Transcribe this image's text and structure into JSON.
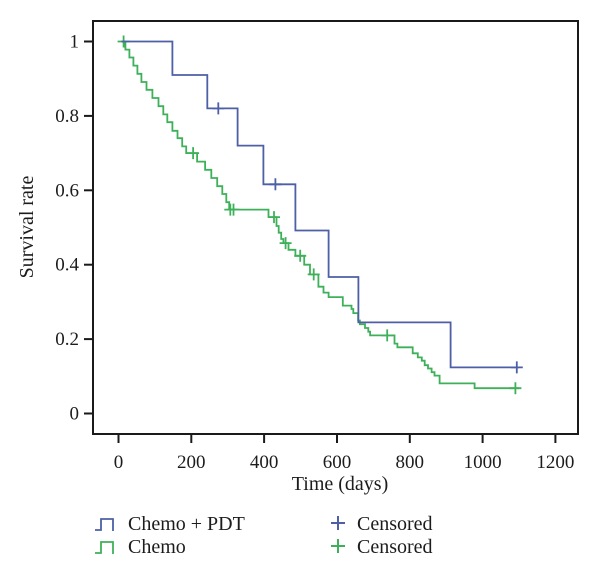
{
  "figure_title": "",
  "colors": {
    "axis": "#1a1a1a",
    "text": "#1c1c1c",
    "chemo_pdt": "#4d5fa6",
    "chemo": "#3fb05a",
    "background": "#ffffff"
  },
  "chart_data": {
    "type": "line",
    "subtype": "kaplan-meier-step",
    "title": "",
    "xlabel": "Time (days)",
    "ylabel": "Survival rate",
    "xlim": [
      -70,
      1262
    ],
    "ylim": [
      -0.055,
      1.055
    ],
    "grid": false,
    "legend_position": "bottom",
    "x_ticks": {
      "values": [
        0,
        200,
        400,
        600,
        800,
        1000,
        1200
      ],
      "labels": [
        "0",
        "200",
        "400",
        "600",
        "800",
        "1000",
        "1200"
      ]
    },
    "y_ticks": {
      "values": [
        0,
        0.2,
        0.4,
        0.6,
        0.8,
        1
      ],
      "labels": [
        "0",
        "0.2",
        "0.4",
        "0.6",
        "0.8",
        "1"
      ]
    },
    "series": [
      {
        "name": "Chemo + PDT",
        "color": "#4d5fa6",
        "end_time": 1100,
        "points": [
          [
            8,
            1.0
          ],
          [
            148,
            0.91
          ],
          [
            244,
            0.82
          ],
          [
            327,
            0.72
          ],
          [
            398,
            0.616
          ],
          [
            486,
            0.492
          ],
          [
            577,
            0.367
          ],
          [
            659,
            0.245
          ],
          [
            912,
            0.124
          ]
        ],
        "censored": [
          [
            274,
            0.82
          ],
          [
            431,
            0.616
          ],
          [
            1094,
            0.124
          ]
        ]
      },
      {
        "name": "Chemo",
        "color": "#3fb05a",
        "end_time": 1100,
        "points": [
          [
            11,
            1.0
          ],
          [
            19,
            0.978
          ],
          [
            30,
            0.957
          ],
          [
            41,
            0.935
          ],
          [
            52,
            0.913
          ],
          [
            63,
            0.891
          ],
          [
            77,
            0.87
          ],
          [
            93,
            0.848
          ],
          [
            110,
            0.826
          ],
          [
            123,
            0.804
          ],
          [
            134,
            0.783
          ],
          [
            148,
            0.76
          ],
          [
            162,
            0.74
          ],
          [
            175,
            0.718
          ],
          [
            186,
            0.7
          ],
          [
            216,
            0.677
          ],
          [
            238,
            0.655
          ],
          [
            255,
            0.633
          ],
          [
            271,
            0.611
          ],
          [
            285,
            0.59
          ],
          [
            296,
            0.568
          ],
          [
            304,
            0.548
          ],
          [
            412,
            0.528
          ],
          [
            434,
            0.504
          ],
          [
            440,
            0.486
          ],
          [
            447,
            0.469
          ],
          [
            453,
            0.458
          ],
          [
            467,
            0.44
          ],
          [
            486,
            0.424
          ],
          [
            510,
            0.4
          ],
          [
            526,
            0.374
          ],
          [
            549,
            0.341
          ],
          [
            563,
            0.325
          ],
          [
            577,
            0.313
          ],
          [
            616,
            0.29
          ],
          [
            640,
            0.281
          ],
          [
            645,
            0.27
          ],
          [
            658,
            0.25
          ],
          [
            663,
            0.24
          ],
          [
            677,
            0.23
          ],
          [
            686,
            0.22
          ],
          [
            691,
            0.21
          ],
          [
            758,
            0.188
          ],
          [
            766,
            0.178
          ],
          [
            808,
            0.162
          ],
          [
            822,
            0.151
          ],
          [
            833,
            0.142
          ],
          [
            841,
            0.13
          ],
          [
            850,
            0.121
          ],
          [
            860,
            0.111
          ],
          [
            868,
            0.102
          ],
          [
            882,
            0.081
          ],
          [
            978,
            0.068
          ]
        ],
        "censored": [
          [
            14,
            1.0
          ],
          [
            205,
            0.7
          ],
          [
            307,
            0.548
          ],
          [
            316,
            0.548
          ],
          [
            427,
            0.528
          ],
          [
            459,
            0.458
          ],
          [
            499,
            0.424
          ],
          [
            536,
            0.374
          ],
          [
            738,
            0.21
          ],
          [
            1090,
            0.068
          ]
        ]
      }
    ]
  },
  "legend": {
    "series_entries": [
      {
        "label": "Chemo + PDT",
        "color": "#4d5fa6",
        "marker": "step"
      },
      {
        "label": "Chemo",
        "color": "#3fb05a",
        "marker": "step"
      }
    ],
    "censored_entries": [
      {
        "label": "Censored",
        "color": "#4d5fa6",
        "marker": "plus"
      },
      {
        "label": "Censored",
        "color": "#3fb05a",
        "marker": "plus"
      }
    ]
  }
}
